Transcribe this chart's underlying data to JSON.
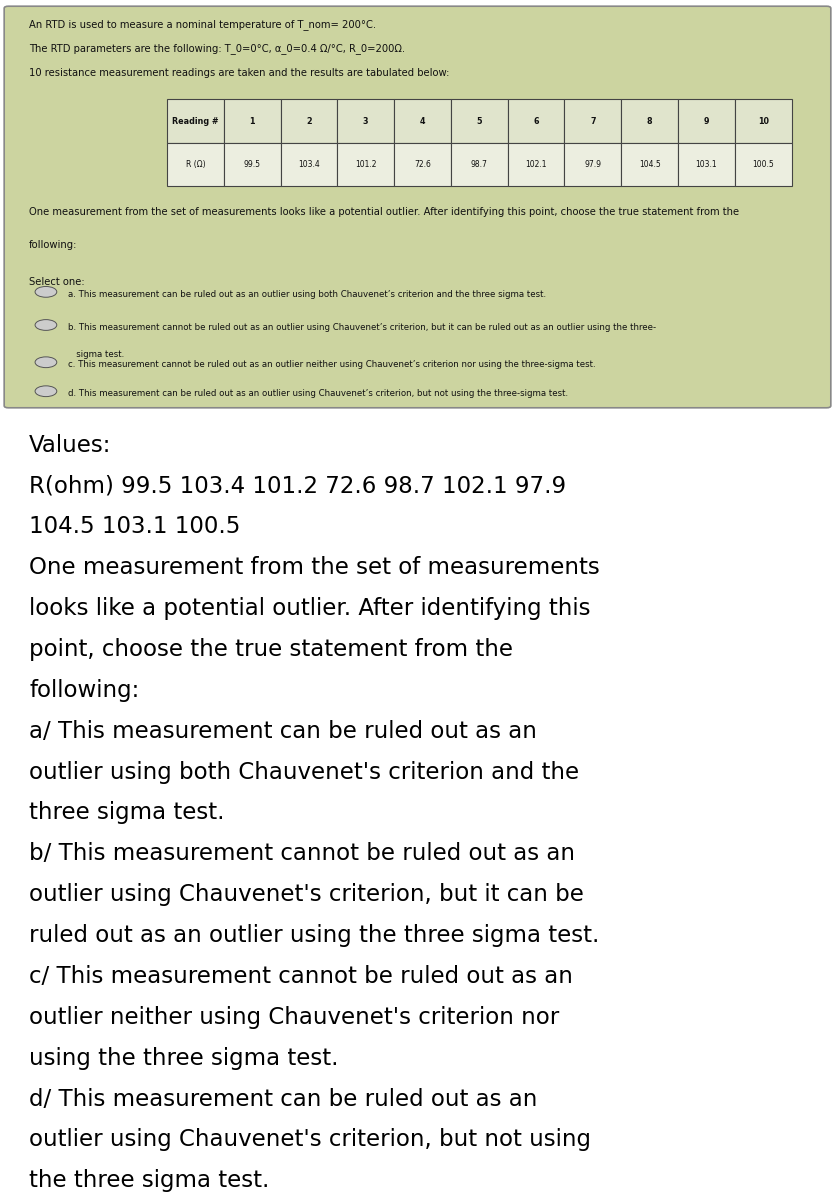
{
  "title_line1": "An RTD is used to measure a nominal temperature of T_nom= 200°C.",
  "title_line2": "The RTD parameters are the following: T_0=0°C, α_0=0.4 Ω/°C, R_0=200Ω.",
  "title_line3": "10 resistance measurement readings are taken and the results are tabulated below:",
  "table_headers": [
    "Reading #",
    "1",
    "2",
    "3",
    "4",
    "5",
    "6",
    "7",
    "8",
    "9",
    "10"
  ],
  "table_row_label": "R (Ω)",
  "table_values": [
    "99.5",
    "103.4",
    "101.2",
    "72.6",
    "98.7",
    "102.1",
    "97.9",
    "104.5",
    "103.1",
    "100.5"
  ],
  "question_line1": "One measurement from the set of measurements looks like a potential outlier. After identifying this point, choose the true statement from the",
  "question_line2": "following:",
  "select_one": "Select one:",
  "options": [
    "a. This measurement can be ruled out as an outlier using both Chauvenet’s criterion and the three sigma test.",
    "b. This measurement cannot be ruled out as an outlier using Chauvenet’s criterion, but it can be ruled out as an outlier using the three-\n   sigma test.",
    "c. This measurement cannot be ruled out as an outlier neither using Chauvenet’s criterion nor using the three-sigma test.",
    "d. This measurement can be ruled out as an outlier using Chauvenet’s criterion, but not using the three-sigma test."
  ],
  "top_box_bg": "#c8d4a0",
  "text_color_top": "#111111",
  "bottom_lines": [
    "Values:",
    "R(ohm) 99.5 103.4 101.2 72.6 98.7 102.1 97.9",
    "104.5 103.1 100.5",
    "One measurement from the set of measurements",
    "looks like a potential outlier. After identifying this",
    "point, choose the true statement from the",
    "following:",
    "a/ This measurement can be ruled out as an",
    "outlier using both Chauvenet's criterion and the",
    "three sigma test.",
    "b/ This measurement cannot be ruled out as an",
    "outlier using Chauvenet's criterion, but it can be",
    "ruled out as an outlier using the three sigma test.",
    "c/ This measurement cannot be ruled out as an",
    "outlier neither using Chauvenet's criterion nor",
    "using the three sigma test.",
    "d/ This measurement can be ruled out as an",
    "outlier using Chauvenet's criterion, but not using",
    "the three sigma test."
  ]
}
